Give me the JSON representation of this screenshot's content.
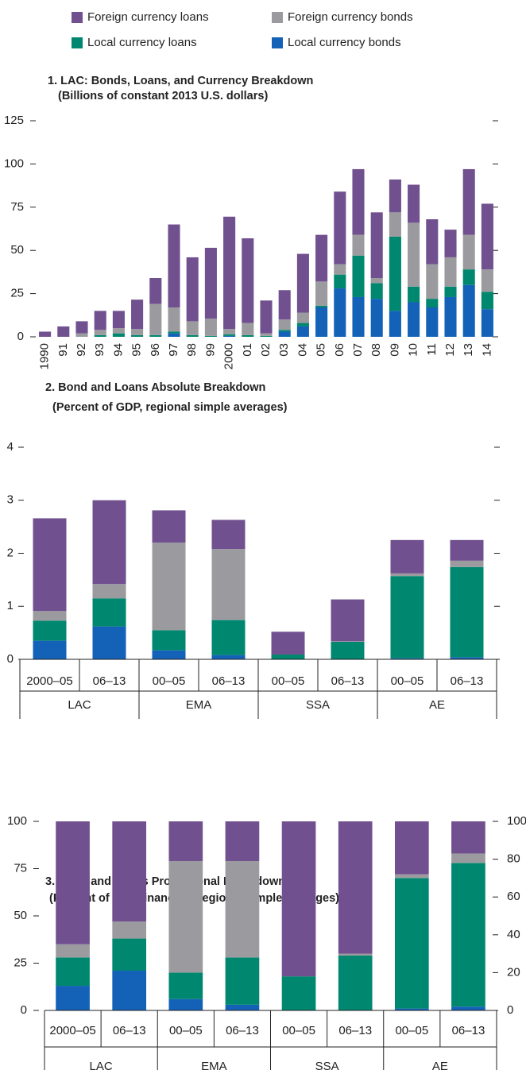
{
  "chart_data": [
    {
      "type": "bar",
      "stacked": true,
      "title": "1. LAC: Bonds, Loans, and Currency Breakdown",
      "subtitle": "(Billions of constant 2013 U.S. dollars)",
      "categories": [
        "1990",
        "91",
        "92",
        "93",
        "94",
        "95",
        "96",
        "97",
        "98",
        "99",
        "2000",
        "01",
        "02",
        "03",
        "04",
        "05",
        "06",
        "07",
        "08",
        "09",
        "10",
        "11",
        "12",
        "13",
        "14"
      ],
      "series": [
        {
          "name": "Foreign currency loans",
          "color": "#71508f",
          "values": [
            3,
            6,
            7,
            11,
            10,
            17,
            15,
            48,
            37,
            41,
            65,
            49,
            19,
            17,
            34,
            27,
            42,
            38,
            38,
            19,
            22,
            26,
            16,
            38,
            38
          ]
        },
        {
          "name": "Foreign currency bonds",
          "color": "#9b9b9f",
          "values": [
            0,
            0,
            2,
            3,
            3,
            3.5,
            18,
            14,
            8,
            10,
            3,
            7,
            1.5,
            6,
            6,
            14,
            6,
            12,
            3,
            14,
            37,
            20,
            17,
            20,
            13
          ]
        },
        {
          "name": "Local currency loans",
          "color": "#00876f",
          "values": [
            0,
            0,
            0,
            1,
            2,
            1,
            1,
            1,
            1,
            0.5,
            1,
            1,
            0.5,
            1,
            2,
            1,
            8,
            24,
            9,
            43,
            9,
            5,
            6,
            9,
            10
          ]
        },
        {
          "name": "Local currency bonds",
          "color": "#1461b8",
          "values": [
            0,
            0,
            0,
            0,
            0,
            0,
            0,
            2,
            0,
            0,
            0.5,
            0,
            0,
            3,
            6,
            17,
            28,
            23,
            22,
            15,
            20,
            17,
            23,
            30,
            16
          ]
        }
      ],
      "ylim": [
        0,
        125
      ],
      "yticks": [
        0,
        25,
        50,
        75,
        100,
        125
      ],
      "mirror_ticks": true
    },
    {
      "type": "bar",
      "stacked": true,
      "title": "2. Bond and Loans Absolute Breakdown",
      "subtitle": "(Percent of GDP, regional simple averages)",
      "categories": [
        "2000–05",
        "06–13",
        "00–05",
        "06–13",
        "00–05",
        "06–13",
        "00–05",
        "06–13"
      ],
      "groups": [
        "LAC",
        "EMA",
        "SSA",
        "AE"
      ],
      "series": [
        {
          "name": "Foreign currency loans",
          "values": [
            1.75,
            1.58,
            0.61,
            0.55,
            0.43,
            0.79,
            0.63,
            0.39
          ]
        },
        {
          "name": "Foreign currency bonds",
          "values": [
            0.18,
            0.27,
            1.65,
            1.34,
            0,
            0.01,
            0.05,
            0.12
          ]
        },
        {
          "name": "Local currency loans",
          "values": [
            0.38,
            0.53,
            0.38,
            0.66,
            0.09,
            0.33,
            1.55,
            1.7
          ]
        },
        {
          "name": "Local currency bonds",
          "values": [
            0.35,
            0.62,
            0.17,
            0.08,
            0,
            0,
            0.02,
            0.04
          ]
        }
      ],
      "ylim": [
        0,
        4
      ],
      "yticks": [
        0,
        1,
        2,
        3,
        4
      ],
      "mirror_ticks": true
    },
    {
      "type": "bar",
      "stacked": true,
      "title": "3. Bond and Loans Proportional Breakdown",
      "subtitle": "(Percent of total financing, regional simple averages)",
      "categories": [
        "2000–05",
        "06–13",
        "00–05",
        "06–13",
        "00–05",
        "06–13",
        "00–05",
        "06–13"
      ],
      "groups": [
        "LAC",
        "EMA",
        "SSA",
        "AE"
      ],
      "series": [
        {
          "name": "Foreign currency loans",
          "values": [
            65,
            53,
            21,
            21,
            82,
            70,
            28,
            17
          ]
        },
        {
          "name": "Foreign currency bonds",
          "values": [
            7,
            9,
            59,
            51,
            0,
            1,
            2,
            5
          ]
        },
        {
          "name": "Local currency loans",
          "values": [
            15,
            17,
            14,
            25,
            18,
            29,
            69,
            76
          ]
        },
        {
          "name": "Local currency bonds",
          "values": [
            13,
            21,
            6,
            3,
            0,
            0,
            1,
            2
          ]
        }
      ],
      "ylim": [
        0,
        100
      ],
      "yticks": [
        0,
        25,
        50,
        75,
        100
      ],
      "y2lim": [
        0,
        100
      ],
      "y2ticks": [
        0,
        20,
        40,
        60,
        80,
        100
      ]
    }
  ]
}
